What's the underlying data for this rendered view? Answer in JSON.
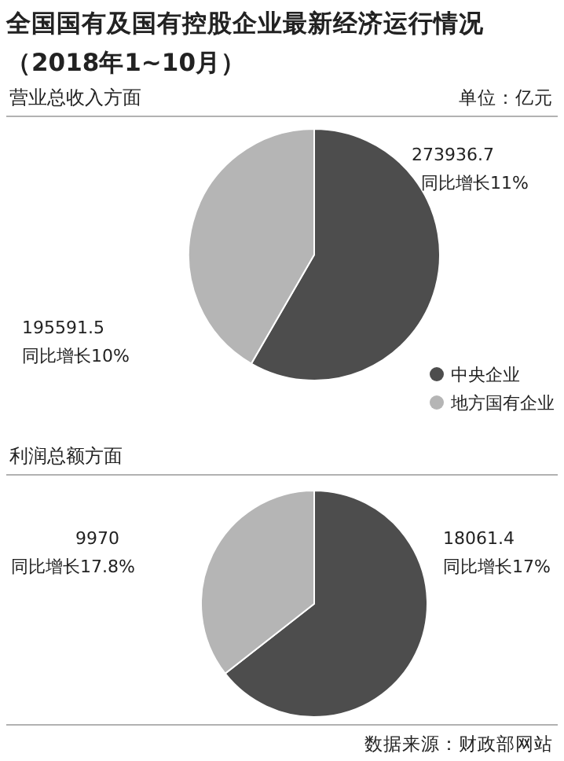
{
  "chart_data": [
    {
      "type": "pie",
      "title": "全国国有及国有控股企业最新经济运行情况（2018年1~10月）",
      "subtitle": "营业总收入方面",
      "categories": [
        "中央企业",
        "地方国有企业"
      ],
      "values": [
        273936.7,
        195591.5
      ],
      "colors": [
        "#4d4d4d",
        "#b5b5b5"
      ],
      "data_labels": true,
      "legend": "bottom right",
      "annotations": [
        "同比增长11%",
        "同比增长10%",
        "单位：亿元"
      ]
    },
    {
      "type": "pie",
      "subtitle": "利润总额方面",
      "categories": [
        null,
        null
      ],
      "values": [
        18061.4,
        9970
      ],
      "colors": [
        "#4d4d4d",
        "#b5b5b5"
      ],
      "data_labels": true,
      "annotations": [
        "同比增长17%",
        "同比增长17.8%",
        "数据来源：财政部网站"
      ]
    }
  ]
}
